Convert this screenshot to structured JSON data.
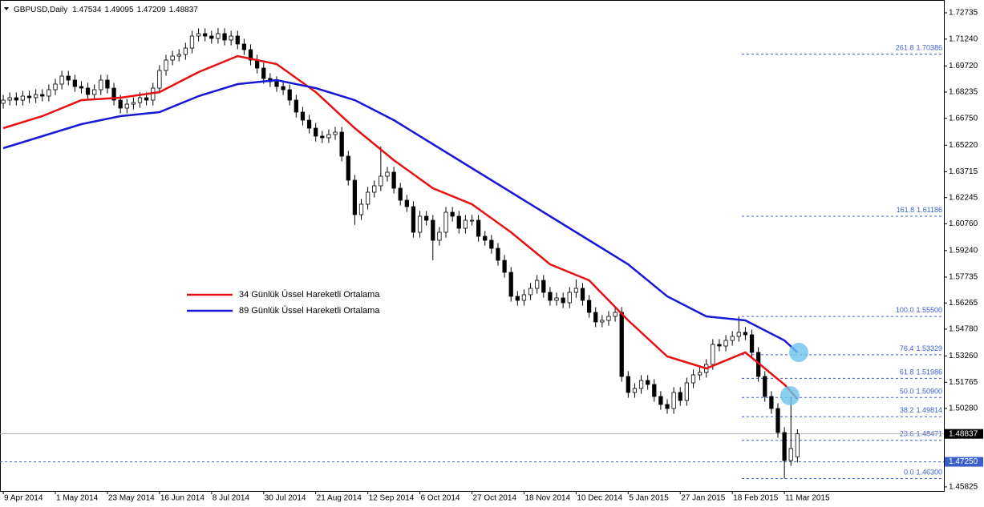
{
  "chart_data": {
    "type": "candlestick",
    "header": {
      "symbol": "GBPUSD,Daily",
      "ohlc": [
        1.47534,
        1.49095,
        1.47209,
        1.48837
      ]
    },
    "xlim": [
      -0.5,
      144.5
    ],
    "ylim": [
      1.45595,
      1.73462
    ],
    "xticks": [
      {
        "value": 0,
        "label": "9 Apr 2014"
      },
      {
        "value": 8,
        "label": "1 May 2014"
      },
      {
        "value": 16,
        "label": "23 May 2014"
      },
      {
        "value": 24,
        "label": "16 Jun 2014"
      },
      {
        "value": 32,
        "label": "8 Jul 2014"
      },
      {
        "value": 40,
        "label": "30 Jul 2014"
      },
      {
        "value": 48,
        "label": "21 Aug 2014"
      },
      {
        "value": 56,
        "label": "12 Sep 2014"
      },
      {
        "value": 64,
        "label": "6 Oct 2014"
      },
      {
        "value": 72,
        "label": "27 Oct 2014"
      },
      {
        "value": 80,
        "label": "18 Nov 2014"
      },
      {
        "value": 88,
        "label": "10 Dec 2014"
      },
      {
        "value": 96,
        "label": "5 Jan 2015"
      },
      {
        "value": 104,
        "label": "27 Jan 2015"
      },
      {
        "value": 112,
        "label": "18 Feb 2015"
      },
      {
        "value": 120,
        "label": "11 Mar 2015"
      }
    ],
    "yticks": [
      1.72735,
      {
        "value": 1.7124,
        "label": "1.71240"
      },
      {
        "value": 1.6972,
        "label": "1.69720"
      },
      1.68235,
      {
        "value": 1.6675,
        "label": "1.66750"
      },
      {
        "value": 1.6522,
        "label": "1.65220"
      },
      1.63715,
      1.62245,
      {
        "value": 1.6076,
        "label": "1.60760"
      },
      {
        "value": 1.5924,
        "label": "1.59240"
      },
      1.57735,
      1.56265,
      {
        "value": 1.5478,
        "label": "1.54780"
      },
      {
        "value": 1.5326,
        "label": "1.53260"
      },
      1.51765,
      {
        "value": 1.5028,
        "label": "1.50280"
      },
      1.45825
    ],
    "current_price": 1.48837,
    "level_line": {
      "value": 1.4725,
      "label": "1.47250"
    },
    "fibonacci": [
      {
        "level": 261.8,
        "price": 1.70386
      },
      {
        "level": 161.8,
        "price": 1.61186
      },
      {
        "level": {
          "value": 100,
          "label": "100.0"
        },
        "price": {
          "value": 1.555,
          "label": "1.55500"
        }
      },
      {
        "level": 76.4,
        "price": 1.53329
      },
      {
        "level": 61.8,
        "price": 1.51986
      },
      {
        "level": {
          "value": 50,
          "label": "50.0"
        },
        "price": {
          "value": 1.509,
          "label": "1.50900"
        }
      },
      {
        "level": 38.2,
        "price": 1.49814
      },
      {
        "level": 23.6,
        "price": 1.48471
      },
      {
        "level": {
          "value": 0,
          "label": "0.0"
        },
        "price": {
          "value": 1.463,
          "label": "1.46300"
        }
      }
    ],
    "candles": [
      [
        1.676,
        1.68079,
        1.673,
        1.67779
      ],
      [
        1.67779,
        1.68216,
        1.67479,
        1.67916
      ],
      [
        1.67916,
        1.68216,
        1.67479,
        1.67779
      ],
      [
        1.67779,
        1.68307,
        1.67479,
        1.68007
      ],
      [
        1.68007,
        1.68307,
        1.67616,
        1.67916
      ],
      [
        1.67916,
        1.68398,
        1.67616,
        1.68098
      ],
      [
        1.68098,
        1.68398,
        1.67707,
        1.68007
      ],
      [
        1.68007,
        1.6867,
        1.67707,
        1.6837
      ],
      [
        1.6837,
        1.68989,
        1.6807,
        1.68689
      ],
      [
        1.68689,
        1.69443,
        1.68389,
        1.69143
      ],
      [
        1.69143,
        1.69443,
        1.68616,
        1.68916
      ],
      [
        1.68916,
        1.69216,
        1.68252,
        1.68552
      ],
      [
        1.68552,
        1.68852,
        1.68161,
        1.68461
      ],
      [
        1.68461,
        1.68761,
        1.67798,
        1.68098
      ],
      [
        1.68098,
        1.6867,
        1.67798,
        1.6837
      ],
      [
        1.6837,
        1.69216,
        1.6807,
        1.68916
      ],
      [
        1.68916,
        1.69216,
        1.68161,
        1.68461
      ],
      [
        1.68461,
        1.68761,
        1.67479,
        1.67779
      ],
      [
        1.67779,
        1.68079,
        1.67025,
        1.67325
      ],
      [
        1.67325,
        1.67852,
        1.67025,
        1.67552
      ],
      [
        1.67552,
        1.67943,
        1.67252,
        1.67643
      ],
      [
        1.67643,
        1.68216,
        1.67343,
        1.67916
      ],
      [
        1.67916,
        1.68216,
        1.67479,
        1.67779
      ],
      [
        1.67779,
        1.68761,
        1.67479,
        1.68461
      ],
      [
        1.68461,
        1.69762,
        1.68161,
        1.69462
      ],
      [
        1.69462,
        1.70352,
        1.69162,
        1.70052
      ],
      [
        1.70052,
        1.7058,
        1.69752,
        1.7028
      ],
      [
        1.7028,
        1.70671,
        1.6998,
        1.70371
      ],
      [
        1.70371,
        1.71034,
        1.70071,
        1.70734
      ],
      [
        1.70734,
        1.71716,
        1.70434,
        1.71416
      ],
      [
        1.71416,
        1.71853,
        1.71116,
        1.71553
      ],
      [
        1.71553,
        1.71853,
        1.71116,
        1.71416
      ],
      [
        1.71416,
        1.71716,
        1.7098,
        1.7128
      ],
      [
        1.7128,
        1.71871,
        1.7098,
        1.71553
      ],
      [
        1.71553,
        1.71853,
        1.70889,
        1.71189
      ],
      [
        1.71189,
        1.71716,
        1.70889,
        1.71416
      ],
      [
        1.71416,
        1.71716,
        1.70662,
        1.70962
      ],
      [
        1.70962,
        1.71262,
        1.70343,
        1.70643
      ],
      [
        1.70643,
        1.70943,
        1.69752,
        1.70052
      ],
      [
        1.70052,
        1.70352,
        1.69298,
        1.69598
      ],
      [
        1.69598,
        1.69898,
        1.68707,
        1.69007
      ],
      [
        1.69007,
        1.69307,
        1.68525,
        1.68825
      ],
      [
        1.68825,
        1.69125,
        1.68252,
        1.68552
      ],
      [
        1.68552,
        1.68852,
        1.6807,
        1.6837
      ],
      [
        1.6837,
        1.6867,
        1.67479,
        1.67779
      ],
      [
        1.67779,
        1.68079,
        1.66798,
        1.67098
      ],
      [
        1.67098,
        1.67398,
        1.66343,
        1.66643
      ],
      [
        1.66643,
        1.66943,
        1.65888,
        1.66188
      ],
      [
        1.66188,
        1.66488,
        1.65434,
        1.65734
      ],
      [
        1.65734,
        1.66034,
        1.65343,
        1.65643
      ],
      [
        1.65643,
        1.66125,
        1.65343,
        1.65825
      ],
      [
        1.65825,
        1.66261,
        1.65525,
        1.65961
      ],
      [
        1.65961,
        1.66261,
        1.64297,
        1.64597
      ],
      [
        1.64597,
        1.64897,
        1.62933,
        1.63233
      ],
      [
        1.63233,
        1.63533,
        1.607,
        1.61279
      ],
      [
        1.61279,
        1.6217,
        1.60979,
        1.6187
      ],
      [
        1.6187,
        1.62852,
        1.6157,
        1.62552
      ],
      [
        1.62552,
        1.63215,
        1.62252,
        1.62915
      ],
      [
        1.62915,
        1.65143,
        1.62615,
        1.63461
      ],
      [
        1.63461,
        1.63988,
        1.63161,
        1.63688
      ],
      [
        1.63688,
        1.63988,
        1.62479,
        1.62779
      ],
      [
        1.62779,
        1.63079,
        1.61797,
        1.62097
      ],
      [
        1.62097,
        1.62397,
        1.61433,
        1.61733
      ],
      [
        1.61733,
        1.62033,
        1.59979,
        1.60279
      ],
      [
        1.60279,
        1.61488,
        1.59979,
        1.61188
      ],
      [
        1.61188,
        1.61488,
        1.6066,
        1.6096
      ],
      [
        1.6096,
        1.6126,
        1.58687,
        1.59824
      ],
      [
        1.59824,
        1.60579,
        1.59524,
        1.60279
      ],
      [
        1.60279,
        1.61715,
        1.59979,
        1.61415
      ],
      [
        1.61415,
        1.61715,
        1.60888,
        1.61188
      ],
      [
        1.61188,
        1.61488,
        1.60206,
        1.60506
      ],
      [
        1.60506,
        1.6126,
        1.60206,
        1.6096
      ],
      [
        1.6096,
        1.6126,
        1.6066,
        1.6096
      ],
      [
        1.6096,
        1.6126,
        1.59751,
        1.60051
      ],
      [
        1.60051,
        1.60351,
        1.59524,
        1.59824
      ],
      [
        1.59824,
        1.60124,
        1.59069,
        1.59369
      ],
      [
        1.59369,
        1.59669,
        1.58387,
        1.58687
      ],
      [
        1.58687,
        1.58987,
        1.57706,
        1.58006
      ],
      [
        1.58006,
        1.58306,
        1.56342,
        1.56642
      ],
      [
        1.56642,
        1.56942,
        1.56114,
        1.56414
      ],
      [
        1.56414,
        1.57033,
        1.56114,
        1.56733
      ],
      [
        1.56733,
        1.57396,
        1.56433,
        1.57096
      ],
      [
        1.57096,
        1.57851,
        1.56796,
        1.57551
      ],
      [
        1.57551,
        1.57851,
        1.56569,
        1.56869
      ],
      [
        1.56869,
        1.57169,
        1.56114,
        1.56414
      ],
      [
        1.56414,
        1.56851,
        1.56114,
        1.56551
      ],
      [
        1.56551,
        1.56851,
        1.55978,
        1.56278
      ],
      [
        1.56278,
        1.57169,
        1.55978,
        1.56869
      ],
      [
        1.56869,
        1.576,
        1.56569,
        1.57096
      ],
      [
        1.57096,
        1.57396,
        1.56114,
        1.56414
      ],
      [
        1.56414,
        1.56714,
        1.55433,
        1.55733
      ],
      [
        1.55733,
        1.56033,
        1.54887,
        1.55187
      ],
      [
        1.55187,
        1.55578,
        1.54887,
        1.55278
      ],
      [
        1.55278,
        1.55805,
        1.54978,
        1.55505
      ],
      [
        1.55505,
        1.56033,
        1.55205,
        1.55733
      ],
      [
        1.55733,
        1.56033,
        1.51796,
        1.52096
      ],
      [
        1.52096,
        1.52396,
        1.50887,
        1.51187
      ],
      [
        1.51187,
        1.51714,
        1.50887,
        1.51414
      ],
      [
        1.51414,
        1.52168,
        1.51114,
        1.51868
      ],
      [
        1.51868,
        1.52168,
        1.51341,
        1.51641
      ],
      [
        1.51641,
        1.51941,
        1.50659,
        1.50959
      ],
      [
        1.50959,
        1.51259,
        1.50205,
        1.50505
      ],
      [
        1.50505,
        1.50805,
        1.49977,
        1.50277
      ],
      [
        1.50277,
        1.51487,
        1.49977,
        1.51187
      ],
      [
        1.51187,
        1.51487,
        1.50432,
        1.50732
      ],
      [
        1.50732,
        1.52032,
        1.50432,
        1.51732
      ],
      [
        1.51732,
        1.52487,
        1.51432,
        1.52187
      ],
      [
        1.52187,
        1.52623,
        1.51887,
        1.52323
      ],
      [
        1.52323,
        1.53078,
        1.52023,
        1.52778
      ],
      [
        1.52778,
        1.54214,
        1.52478,
        1.53914
      ],
      [
        1.53914,
        1.54214,
        1.53523,
        1.53823
      ],
      [
        1.53823,
        1.54441,
        1.53523,
        1.54141
      ],
      [
        1.54141,
        1.54669,
        1.53841,
        1.54369
      ],
      [
        1.54369,
        1.555,
        1.54069,
        1.54596
      ],
      [
        1.54596,
        1.54896,
        1.5416,
        1.5446
      ],
      [
        1.5446,
        1.5476,
        1.5316,
        1.5346
      ],
      [
        1.5346,
        1.5376,
        1.51796,
        1.52096
      ],
      [
        1.52096,
        1.52396,
        1.50659,
        1.50959
      ],
      [
        1.50959,
        1.51259,
        1.49977,
        1.50277
      ],
      [
        1.50277,
        1.50577,
        1.48614,
        1.48914
      ],
      [
        1.48914,
        1.49214,
        1.463,
        1.47322
      ],
      [
        1.47322,
        1.509,
        1.47022,
        1.48004
      ],
      [
        1.47534,
        1.49095,
        1.47209,
        1.48837
      ]
    ],
    "series": [
      {
        "name": "34 Günlük Üssel Hareketli Ortalama",
        "color": "#e81010",
        "x": [
          0,
          6,
          12,
          18,
          24,
          30,
          36,
          42,
          48,
          54,
          60,
          66,
          72,
          78,
          84,
          90,
          96,
          102,
          108,
          114,
          120,
          122
        ],
        "values": [
          1.66188,
          1.6687,
          1.67779,
          1.67916,
          1.68234,
          1.69371,
          1.7028,
          1.69825,
          1.68234,
          1.66188,
          1.6437,
          1.62779,
          1.6187,
          1.60279,
          1.5846,
          1.57551,
          1.55278,
          1.53232,
          1.5255,
          1.5346,
          1.51641,
          1.50823
        ]
      },
      {
        "name": "89 Günlük Üssel Hareketli Ortalama",
        "color": "#1818d8",
        "x": [
          0,
          6,
          12,
          18,
          24,
          30,
          36,
          42,
          48,
          54,
          60,
          66,
          72,
          78,
          84,
          90,
          96,
          102,
          108,
          114,
          120,
          122
        ],
        "values": [
          1.65052,
          1.65734,
          1.66416,
          1.6687,
          1.67098,
          1.68007,
          1.68689,
          1.68916,
          1.68461,
          1.67779,
          1.66643,
          1.65279,
          1.63915,
          1.62552,
          1.61188,
          1.59824,
          1.5846,
          1.56642,
          1.55505,
          1.55278,
          1.54141,
          1.5346
        ]
      }
    ]
  }
}
